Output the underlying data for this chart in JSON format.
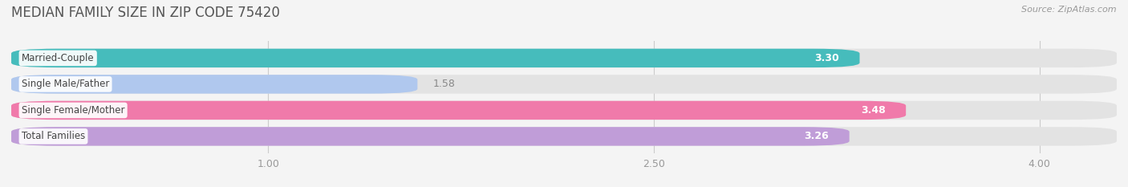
{
  "title": "MEDIAN FAMILY SIZE IN ZIP CODE 75420",
  "source": "Source: ZipAtlas.com",
  "categories": [
    "Married-Couple",
    "Single Male/Father",
    "Single Female/Mother",
    "Total Families"
  ],
  "values": [
    3.3,
    1.58,
    3.48,
    3.26
  ],
  "bar_colors": [
    "#46bcbc",
    "#b0c8ee",
    "#f07aaa",
    "#c09dd8"
  ],
  "xlim_min": 0.0,
  "xlim_max": 4.3,
  "data_min": 0.0,
  "data_max": 4.3,
  "xticks": [
    1.0,
    2.5,
    4.0
  ],
  "bar_height": 0.72,
  "bar_gap": 0.18,
  "background_color": "#f4f4f4",
  "bar_bg_color": "#e3e3e3",
  "title_fontsize": 12,
  "label_fontsize": 8.5,
  "value_fontsize": 9,
  "source_fontsize": 8,
  "tick_fontsize": 9,
  "grid_color": "#cccccc",
  "title_color": "#555555",
  "tick_color": "#999999",
  "value_inside_color": "#ffffff",
  "value_outside_color": "#888888",
  "label_bg_color": "#ffffff",
  "label_text_color": "#444444",
  "label_threshold": 2.0
}
